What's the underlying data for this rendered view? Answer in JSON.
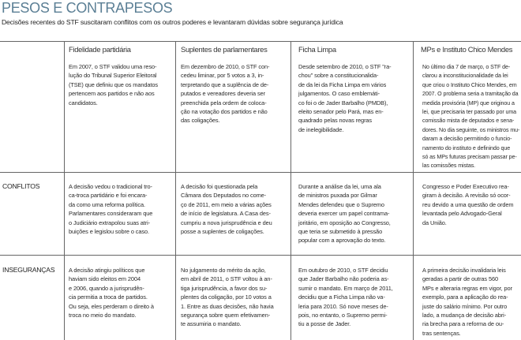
{
  "title": "PESOS E CONTRAPESOS",
  "subtitle": "Decisões recentes do STF suscitaram conflitos com os outros poderes e levantaram dúvidas sobre segurança jurídica",
  "title_color": "#5b7f95",
  "columns": [
    {
      "label": "Fidelidade partidária"
    },
    {
      "label": "Suplentes de parlamentares"
    },
    {
      "label": "Ficha Limpa"
    },
    {
      "label": "MPs e Instituto Chico Mendes"
    }
  ],
  "rows": [
    {
      "label": "",
      "cells": [
        "Em 2007, o STF validou uma reso-\nlução do Tribunal Superior Eleitoral\n(TSE) que definiu que os mandatos\npertencem aos partidos e não aos\ncandidatos.",
        "Em dezembro de 2010, o STF con-\ncedeu liminar, por 5 votos a 3, in-\nterpretando que a suplência de de-\nputados e vereadores deveria ser\npreenchida pela ordem de coloca-\nção na votação dos partidos e não\ndas coligações.",
        "Desde setembro de 2010, o STF \"ra-\nchou\" sobre a constitucionalida-\nde da lei da Ficha Limpa em vários\njulgamentos. O caso emblemáti-\nco foi o de Jader Barbalho (PMDB),\neleito senador pelo Pará, mas en-\nquadrado pelas novas regras\nde inelegibilidade.",
        "No último dia 7 de março, o STF de-\nclarou a inconstitucionalidade da lei\nque criou o Instituto Chico Mendes, em\n2007. O problema seria a tramitação da\nmedida provisória (MP) que originou a\nlei, que precisaria ter passado por uma\ncomissão mista de deputados e sena-\ndores. No dia seguinte, os ministros mu-\ndaram a decisão permitindo o funcio-\nnamento do instituto e definindo que\nsó as MPs futuras precisam passar pe-\nlas comissões mistas."
      ]
    },
    {
      "label": "CONFLITOS",
      "cells": [
        "A decisão vedou o tradicional tro-\nca-troca partidário e foi encara-\nda como uma reforma política.\nParlamentares consideraram que\no Judiciário extrapolou suas atri-\nbuições e legislou sobre o caso.",
        "A decisão foi questionada pela\nCâmara dos Deputados no come-\nço de 2011, em meio a várias ações\nde início de legislatura. A Casa des-\ncumpriu a nova jurisprudência e deu\nposse a suplentes de coligações.",
        "Durante a análise da lei, uma ala\nde ministros puxada por Gilmar\nMendes defendeu que o Supremo\ndeveria exercer um papel contrama-\njoritário, em oposição ao Congresso,\nque teria se submetido à pressão\npopular com a aprovação do texto.",
        "Congresso e Poder Executivo rea-\ngiram à decisão. A revisão só ocor-\nreu devido a uma questão de ordem\nlevantada pelo Advogado-Geral\nda União."
      ]
    },
    {
      "label": "INSEGURANÇAS",
      "cells": [
        "A decisão atingiu políticos que\nhaviam sido eleitos em 2004\ne 2006, quando a jurisprudên-\ncia permitia a troca de partidos.\nOu seja, eles perderam o direito à\ntroca no meio do mandato.",
        "No julgamento do mérito da ação,\nem abril de 2011, o STF voltou à an-\ntiga jurisprudência, a favor dos su-\nplentes da coligação, por 10 votos a\n1. Entre as duas decisões, não havia\nsegurança sobre quem efetivamen-\nte assumiria o mandato.",
        "Em outubro de 2010, o STF decidiu\nque Jader Barbalho não poderia as-\nsumir o mandato. Em março de 2011,\ndecidiu que a Ficha Limpa não va-\nleria para 2010. Só nove meses de-\npois, no entanto, o Supremo permi-\ntiu a posse de Jader.",
        "A primeira decisão invalidaria leis\ngeradas a partir de outras 560\nMPs e alteraria regras em vigor, por\nexemplo, para a aplicação do rea-\njuste do salário mínimo. Por outro\nlado, a mudança de decisão abri-\nria brecha para a reforma de ou-\ntras sentenças."
      ]
    }
  ]
}
